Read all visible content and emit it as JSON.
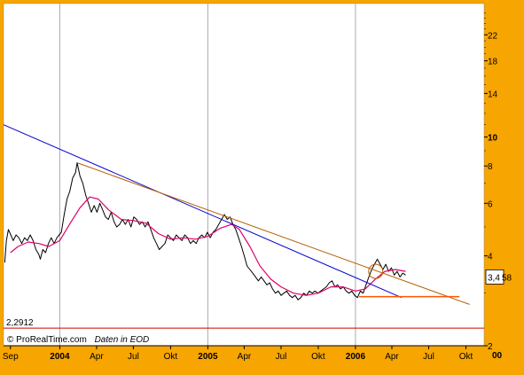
{
  "chart_data": {
    "type": "line",
    "credit": "© ProRealTime.com",
    "source": "Daten in EOD",
    "y_scale": "log",
    "ylim": [
      2,
      28
    ],
    "y_ticks": [
      {
        "value": 2,
        "label": "2",
        "bold": false
      },
      {
        "value": 4,
        "label": "4",
        "bold": false
      },
      {
        "value": 6,
        "label": "6",
        "bold": false
      },
      {
        "value": 8,
        "label": "8",
        "bold": false
      },
      {
        "value": 10,
        "label": "10",
        "bold": true
      },
      {
        "value": 14,
        "label": "14",
        "bold": false
      },
      {
        "value": 18,
        "label": "18",
        "bold": false
      },
      {
        "value": 22,
        "label": "22",
        "bold": false
      }
    ],
    "y_overflow_label": "00",
    "x_range": [
      "2003-08-15",
      "2006-11-15"
    ],
    "x_ticks": [
      {
        "date": "2003-09-01",
        "label": "Sep",
        "bold": false,
        "major": false
      },
      {
        "date": "2004-01-01",
        "label": "2004",
        "bold": true,
        "major": true
      },
      {
        "date": "2004-04-01",
        "label": "Apr",
        "bold": false,
        "major": false
      },
      {
        "date": "2004-07-01",
        "label": "Jul",
        "bold": false,
        "major": false
      },
      {
        "date": "2004-10-01",
        "label": "Okt",
        "bold": false,
        "major": false
      },
      {
        "date": "2005-01-01",
        "label": "2005",
        "bold": true,
        "major": true
      },
      {
        "date": "2005-04-01",
        "label": "Apr",
        "bold": false,
        "major": false
      },
      {
        "date": "2005-07-01",
        "label": "Jul",
        "bold": false,
        "major": false
      },
      {
        "date": "2005-10-01",
        "label": "Okt",
        "bold": false,
        "major": false
      },
      {
        "date": "2006-01-01",
        "label": "2006",
        "bold": true,
        "major": true
      },
      {
        "date": "2006-04-01",
        "label": "Apr",
        "bold": false,
        "major": false
      },
      {
        "date": "2006-07-01",
        "label": "Jul",
        "bold": false,
        "major": false
      },
      {
        "date": "2006-10-01",
        "label": "Okt",
        "bold": false,
        "major": false
      }
    ],
    "support_level": {
      "value": 2.2912,
      "label": "2,2912",
      "color": "#cc0000"
    },
    "last_price": {
      "label": "3,4",
      "extra": "58",
      "value": 3.4
    },
    "colors": {
      "background": "#ffffff",
      "frame": "#f7a500",
      "grid": "#aaaaaa",
      "price": "#000000",
      "moving_average": "#e0006a",
      "trend_blue": "#0000cc",
      "trend_brown": "#b85c00",
      "horizontal_orange": "#ff5500"
    },
    "series": [
      {
        "key": "price",
        "points": [
          [
            "2003-08-18",
            3.8
          ],
          [
            "2003-08-22",
            4.5
          ],
          [
            "2003-08-27",
            4.9
          ],
          [
            "2003-09-02",
            4.7
          ],
          [
            "2003-09-08",
            4.5
          ],
          [
            "2003-09-15",
            4.7
          ],
          [
            "2003-09-22",
            4.6
          ],
          [
            "2003-09-29",
            4.4
          ],
          [
            "2003-10-06",
            4.6
          ],
          [
            "2003-10-13",
            4.5
          ],
          [
            "2003-10-20",
            4.7
          ],
          [
            "2003-10-27",
            4.5
          ],
          [
            "2003-11-03",
            4.2
          ],
          [
            "2003-11-10",
            4.05
          ],
          [
            "2003-11-14",
            3.9
          ],
          [
            "2003-11-20",
            4.2
          ],
          [
            "2003-11-27",
            4.1
          ],
          [
            "2003-12-04",
            4.4
          ],
          [
            "2003-12-11",
            4.6
          ],
          [
            "2003-12-18",
            4.4
          ],
          [
            "2003-12-25",
            4.6
          ],
          [
            "2004-01-05",
            4.8
          ],
          [
            "2004-01-12",
            5.5
          ],
          [
            "2004-01-19",
            6.2
          ],
          [
            "2004-01-26",
            6.6
          ],
          [
            "2004-02-02",
            7.3
          ],
          [
            "2004-02-09",
            7.6
          ],
          [
            "2004-02-13",
            8.2
          ],
          [
            "2004-02-20",
            7.4
          ],
          [
            "2004-02-27",
            7.0
          ],
          [
            "2004-03-05",
            6.4
          ],
          [
            "2004-03-12",
            6.0
          ],
          [
            "2004-03-19",
            5.6
          ],
          [
            "2004-03-26",
            5.9
          ],
          [
            "2004-04-02",
            5.6
          ],
          [
            "2004-04-09",
            6.0
          ],
          [
            "2004-04-16",
            5.7
          ],
          [
            "2004-04-23",
            5.4
          ],
          [
            "2004-04-30",
            5.3
          ],
          [
            "2004-05-07",
            5.6
          ],
          [
            "2004-05-14",
            5.2
          ],
          [
            "2004-05-21",
            5.0
          ],
          [
            "2004-05-28",
            5.1
          ],
          [
            "2004-06-04",
            5.3
          ],
          [
            "2004-06-11",
            5.1
          ],
          [
            "2004-06-18",
            5.3
          ],
          [
            "2004-06-25",
            5.0
          ],
          [
            "2004-07-02",
            5.4
          ],
          [
            "2004-07-09",
            5.3
          ],
          [
            "2004-07-16",
            5.1
          ],
          [
            "2004-07-23",
            5.2
          ],
          [
            "2004-07-30",
            5.0
          ],
          [
            "2004-08-06",
            5.2
          ],
          [
            "2004-08-13",
            4.9
          ],
          [
            "2004-08-20",
            4.6
          ],
          [
            "2004-08-27",
            4.4
          ],
          [
            "2004-09-03",
            4.2
          ],
          [
            "2004-09-10",
            4.3
          ],
          [
            "2004-09-17",
            4.4
          ],
          [
            "2004-09-24",
            4.7
          ],
          [
            "2004-10-01",
            4.6
          ],
          [
            "2004-10-08",
            4.5
          ],
          [
            "2004-10-15",
            4.7
          ],
          [
            "2004-10-22",
            4.6
          ],
          [
            "2004-10-29",
            4.5
          ],
          [
            "2004-11-05",
            4.7
          ],
          [
            "2004-11-12",
            4.6
          ],
          [
            "2004-11-19",
            4.4
          ],
          [
            "2004-11-26",
            4.5
          ],
          [
            "2004-12-03",
            4.4
          ],
          [
            "2004-12-10",
            4.6
          ],
          [
            "2004-12-17",
            4.7
          ],
          [
            "2004-12-24",
            4.6
          ],
          [
            "2004-12-31",
            4.8
          ],
          [
            "2005-01-07",
            4.6
          ],
          [
            "2005-01-14",
            4.8
          ],
          [
            "2005-01-21",
            4.9
          ],
          [
            "2005-01-28",
            5.1
          ],
          [
            "2005-02-04",
            5.3
          ],
          [
            "2005-02-11",
            5.5
          ],
          [
            "2005-02-18",
            5.3
          ],
          [
            "2005-02-25",
            5.4
          ],
          [
            "2005-03-04",
            5.1
          ],
          [
            "2005-03-11",
            4.9
          ],
          [
            "2005-03-18",
            4.6
          ],
          [
            "2005-03-25",
            4.3
          ],
          [
            "2005-04-01",
            4.0
          ],
          [
            "2005-04-08",
            3.7
          ],
          [
            "2005-04-15",
            3.6
          ],
          [
            "2005-04-22",
            3.5
          ],
          [
            "2005-04-29",
            3.4
          ],
          [
            "2005-05-06",
            3.3
          ],
          [
            "2005-05-13",
            3.4
          ],
          [
            "2005-05-20",
            3.3
          ],
          [
            "2005-05-27",
            3.2
          ],
          [
            "2005-06-03",
            3.25
          ],
          [
            "2005-06-10",
            3.1
          ],
          [
            "2005-06-17",
            3.0
          ],
          [
            "2005-06-24",
            3.05
          ],
          [
            "2005-07-01",
            2.95
          ],
          [
            "2005-07-08",
            3.0
          ],
          [
            "2005-07-15",
            3.05
          ],
          [
            "2005-07-22",
            2.95
          ],
          [
            "2005-07-29",
            2.9
          ],
          [
            "2005-08-05",
            2.95
          ],
          [
            "2005-08-12",
            2.85
          ],
          [
            "2005-08-19",
            2.9
          ],
          [
            "2005-08-26",
            3.0
          ],
          [
            "2005-09-02",
            2.95
          ],
          [
            "2005-09-09",
            3.05
          ],
          [
            "2005-09-16",
            3.0
          ],
          [
            "2005-09-23",
            3.05
          ],
          [
            "2005-09-30",
            3.0
          ],
          [
            "2005-10-07",
            3.05
          ],
          [
            "2005-10-14",
            3.1
          ],
          [
            "2005-10-21",
            3.15
          ],
          [
            "2005-10-28",
            3.25
          ],
          [
            "2005-11-04",
            3.3
          ],
          [
            "2005-11-11",
            3.15
          ],
          [
            "2005-11-18",
            3.2
          ],
          [
            "2005-11-25",
            3.1
          ],
          [
            "2005-12-02",
            3.15
          ],
          [
            "2005-12-09",
            3.05
          ],
          [
            "2005-12-16",
            3.0
          ],
          [
            "2005-12-23",
            3.05
          ],
          [
            "2005-12-30",
            2.95
          ],
          [
            "2006-01-06",
            2.9
          ],
          [
            "2006-01-13",
            3.05
          ],
          [
            "2006-01-20",
            3.0
          ],
          [
            "2006-01-27",
            3.2
          ],
          [
            "2006-02-03",
            3.4
          ],
          [
            "2006-02-10",
            3.6
          ],
          [
            "2006-02-17",
            3.75
          ],
          [
            "2006-02-24",
            3.9
          ],
          [
            "2006-03-03",
            3.75
          ],
          [
            "2006-03-10",
            3.6
          ],
          [
            "2006-03-17",
            3.75
          ],
          [
            "2006-03-24",
            3.55
          ],
          [
            "2006-03-31",
            3.65
          ],
          [
            "2006-04-07",
            3.45
          ],
          [
            "2006-04-14",
            3.55
          ],
          [
            "2006-04-21",
            3.4
          ],
          [
            "2006-04-28",
            3.5
          ],
          [
            "2006-05-05",
            3.45
          ]
        ]
      },
      {
        "key": "moving_average",
        "points": [
          [
            "2003-09-01",
            4.1
          ],
          [
            "2003-09-20",
            4.3
          ],
          [
            "2003-10-15",
            4.45
          ],
          [
            "2003-11-10",
            4.4
          ],
          [
            "2003-12-05",
            4.3
          ],
          [
            "2004-01-01",
            4.5
          ],
          [
            "2004-01-25",
            5.1
          ],
          [
            "2004-02-20",
            5.8
          ],
          [
            "2004-03-15",
            6.3
          ],
          [
            "2004-04-05",
            6.2
          ],
          [
            "2004-05-01",
            5.7
          ],
          [
            "2004-06-01",
            5.3
          ],
          [
            "2004-07-01",
            5.25
          ],
          [
            "2004-08-01",
            5.15
          ],
          [
            "2004-09-01",
            4.75
          ],
          [
            "2004-10-01",
            4.55
          ],
          [
            "2004-11-01",
            4.6
          ],
          [
            "2004-12-01",
            4.55
          ],
          [
            "2005-01-01",
            4.65
          ],
          [
            "2005-02-01",
            4.95
          ],
          [
            "2005-03-01",
            5.1
          ],
          [
            "2005-03-20",
            4.9
          ],
          [
            "2005-04-15",
            4.3
          ],
          [
            "2005-05-10",
            3.7
          ],
          [
            "2005-06-05",
            3.35
          ],
          [
            "2005-07-01",
            3.15
          ],
          [
            "2005-08-01",
            3.0
          ],
          [
            "2005-09-01",
            2.95
          ],
          [
            "2005-10-01",
            3.0
          ],
          [
            "2005-11-01",
            3.15
          ],
          [
            "2005-12-01",
            3.15
          ],
          [
            "2006-01-01",
            3.05
          ],
          [
            "2006-01-25",
            3.1
          ],
          [
            "2006-02-20",
            3.35
          ],
          [
            "2006-03-15",
            3.55
          ],
          [
            "2006-04-10",
            3.6
          ],
          [
            "2006-05-05",
            3.55
          ]
        ]
      },
      {
        "key": "trend_blue",
        "points": [
          [
            "2003-08-15",
            11.0
          ],
          [
            "2006-04-25",
            2.9
          ]
        ]
      },
      {
        "key": "trend_brown",
        "points": [
          [
            "2004-02-13",
            8.2
          ],
          [
            "2006-10-10",
            2.75
          ]
        ]
      },
      {
        "key": "horizontal_orange",
        "points": [
          [
            "2006-01-10",
            2.92
          ],
          [
            "2006-09-15",
            2.92
          ]
        ]
      }
    ]
  }
}
